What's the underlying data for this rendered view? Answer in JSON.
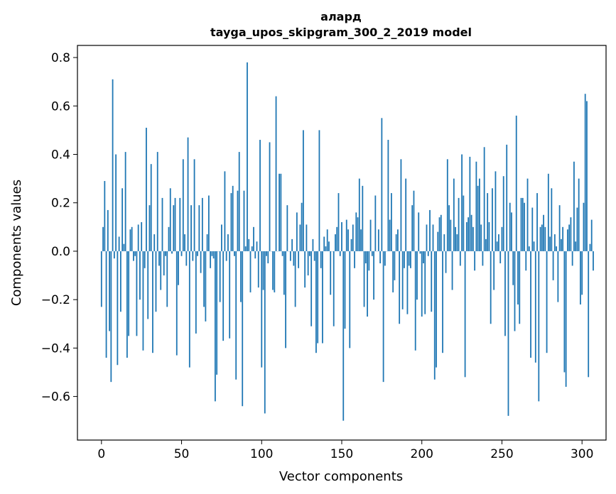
{
  "chart_data": {
    "type": "bar",
    "title_line1": "алард",
    "title_line2": "tayga_upos_skipgram_300_2_2019 model",
    "xlabel": "Vector components",
    "ylabel": "Components values",
    "xlim": [
      -15,
      315
    ],
    "ylim": [
      -0.78,
      0.85
    ],
    "xticks": [
      0,
      50,
      100,
      150,
      200,
      250,
      300
    ],
    "xtick_labels": [
      "0",
      "50",
      "100",
      "150",
      "200",
      "250",
      "300"
    ],
    "yticks": [
      -0.6,
      -0.4,
      -0.2,
      0.0,
      0.2,
      0.4,
      0.6,
      0.8
    ],
    "ytick_labels": [
      "−0.6",
      "−0.4",
      "−0.2",
      "0.0",
      "0.2",
      "0.4",
      "0.6",
      "0.8"
    ],
    "bar_color": "#1f77b4",
    "values": [
      -0.23,
      0.1,
      0.29,
      -0.44,
      0.17,
      -0.33,
      -0.54,
      0.71,
      -0.03,
      0.4,
      -0.47,
      0.06,
      -0.25,
      0.26,
      0.03,
      0.41,
      -0.44,
      -0.35,
      0.09,
      0.1,
      -0.04,
      -0.02,
      -0.35,
      0.11,
      -0.2,
      0.12,
      -0.41,
      -0.07,
      0.51,
      -0.28,
      0.19,
      0.36,
      -0.42,
      0.07,
      -0.25,
      0.41,
      -0.06,
      -0.16,
      0.22,
      -0.1,
      -0.02,
      -0.23,
      0.1,
      0.26,
      -0.01,
      0.19,
      0.22,
      -0.43,
      -0.14,
      0.22,
      -0.02,
      0.38,
      0.07,
      -0.06,
      0.47,
      -0.48,
      0.19,
      -0.04,
      0.38,
      -0.34,
      -0.02,
      0.19,
      -0.09,
      0.22,
      -0.23,
      -0.29,
      0.07,
      0.23,
      -0.07,
      -0.02,
      -0.03,
      -0.62,
      -0.51,
      0.0,
      -0.21,
      0.11,
      -0.37,
      0.33,
      -0.04,
      0.07,
      -0.36,
      0.24,
      0.27,
      -0.02,
      -0.53,
      0.25,
      0.41,
      -0.21,
      -0.64,
      0.25,
      0.02,
      0.78,
      0.05,
      -0.17,
      0.02,
      0.1,
      -0.03,
      0.04,
      -0.15,
      0.46,
      -0.48,
      -0.16,
      -0.67,
      -0.02,
      -0.05,
      0.45,
      0.0,
      -0.16,
      -0.17,
      0.64,
      0.0,
      0.32,
      0.32,
      -0.02,
      -0.18,
      -0.4,
      0.19,
      0.0,
      -0.04,
      0.05,
      -0.06,
      -0.23,
      0.16,
      -0.07,
      0.11,
      0.2,
      0.5,
      -0.15,
      0.11,
      -0.1,
      -0.02,
      -0.31,
      0.05,
      -0.04,
      -0.42,
      -0.38,
      0.5,
      -0.07,
      -0.38,
      0.06,
      0.02,
      0.09,
      0.04,
      -0.18,
      0.0,
      -0.31,
      0.07,
      0.1,
      0.24,
      -0.02,
      0.12,
      -0.7,
      -0.32,
      0.13,
      0.09,
      -0.4,
      0.05,
      0.11,
      -0.07,
      0.16,
      0.14,
      0.3,
      0.09,
      0.27,
      -0.23,
      -0.05,
      -0.27,
      -0.08,
      0.13,
      -0.02,
      -0.2,
      0.23,
      0.0,
      0.09,
      -0.05,
      0.55,
      -0.54,
      -0.06,
      0.0,
      0.46,
      0.13,
      0.24,
      -0.17,
      -0.12,
      0.07,
      0.09,
      -0.3,
      0.38,
      -0.24,
      -0.07,
      0.3,
      -0.26,
      -0.06,
      -0.07,
      0.19,
      0.25,
      -0.41,
      -0.2,
      0.16,
      -0.01,
      -0.27,
      -0.05,
      -0.26,
      0.11,
      -0.02,
      0.17,
      -0.25,
      0.11,
      -0.53,
      -0.48,
      0.08,
      0.14,
      0.15,
      -0.42,
      0.07,
      -0.09,
      0.38,
      0.19,
      0.13,
      -0.16,
      0.3,
      0.1,
      0.07,
      0.22,
      -0.06,
      0.4,
      0.23,
      -0.52,
      0.12,
      0.14,
      0.39,
      0.15,
      0.1,
      -0.08,
      0.37,
      0.27,
      0.3,
      0.11,
      -0.06,
      0.43,
      0.05,
      0.24,
      0.12,
      -0.3,
      0.26,
      -0.16,
      0.33,
      0.04,
      0.07,
      -0.05,
      0.1,
      0.31,
      -0.35,
      0.44,
      -0.68,
      0.2,
      0.16,
      -0.14,
      -0.33,
      0.56,
      -0.22,
      -0.3,
      0.22,
      0.22,
      0.2,
      -0.08,
      0.3,
      0.02,
      -0.44,
      0.18,
      0.04,
      -0.46,
      0.24,
      -0.62,
      0.1,
      0.11,
      0.15,
      0.1,
      -0.42,
      0.32,
      0.06,
      0.26,
      -0.12,
      0.07,
      0.02,
      -0.21,
      0.19,
      0.05,
      0.1,
      -0.5,
      -0.56,
      0.09,
      0.11,
      0.14,
      -0.06,
      0.37,
      0.04,
      0.18,
      0.3,
      -0.22,
      -0.18,
      0.2,
      0.65,
      0.62,
      -0.52,
      0.03,
      0.13,
      -0.08
    ]
  }
}
